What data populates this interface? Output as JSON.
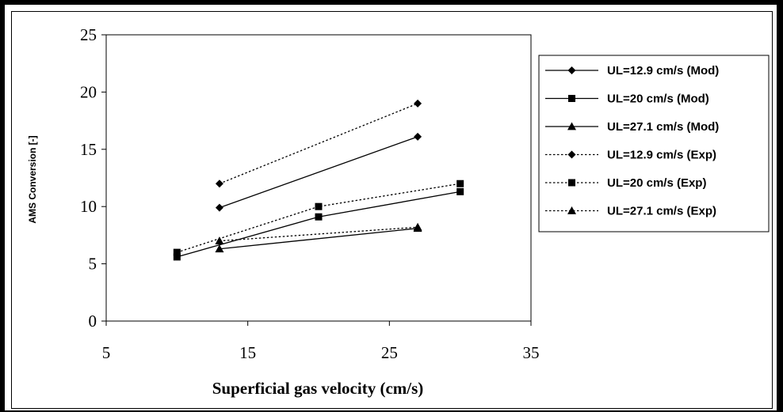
{
  "chart_data": {
    "type": "line",
    "title": "",
    "xlabel": "Superficial gas velocity (cm/s)",
    "ylabel": "AMS Conversion [-]",
    "xlim": [
      5,
      35
    ],
    "ylim": [
      0,
      25
    ],
    "xticks": [
      5,
      15,
      25,
      35
    ],
    "yticks": [
      0,
      5,
      10,
      15,
      20,
      25
    ],
    "grid": false,
    "legend_position": "right",
    "series": [
      {
        "name": "UL=12.9 cm/s (Mod)",
        "marker": "diamond",
        "dash": "solid",
        "x": [
          13,
          27
        ],
        "y": [
          9.9,
          16.1
        ]
      },
      {
        "name": "UL=20 cm/s (Mod)",
        "marker": "square",
        "dash": "solid",
        "x": [
          10,
          20,
          30
        ],
        "y": [
          5.6,
          9.1,
          11.3
        ]
      },
      {
        "name": "UL=27.1 cm/s (Mod)",
        "marker": "triangle",
        "dash": "solid",
        "x": [
          13,
          27
        ],
        "y": [
          6.3,
          8.1
        ]
      },
      {
        "name": "UL=12.9 cm/s (Exp)",
        "marker": "diamond",
        "dash": "dotted",
        "x": [
          13,
          27
        ],
        "y": [
          12.0,
          19.0
        ]
      },
      {
        "name": "UL=20 cm/s (Exp)",
        "marker": "square",
        "dash": "dotted",
        "x": [
          10,
          20,
          30
        ],
        "y": [
          6.0,
          10.0,
          12.0
        ]
      },
      {
        "name": "UL=27.1 cm/s (Exp)",
        "marker": "triangle",
        "dash": "dotted",
        "x": [
          13,
          27
        ],
        "y": [
          7.0,
          8.2
        ]
      }
    ]
  }
}
